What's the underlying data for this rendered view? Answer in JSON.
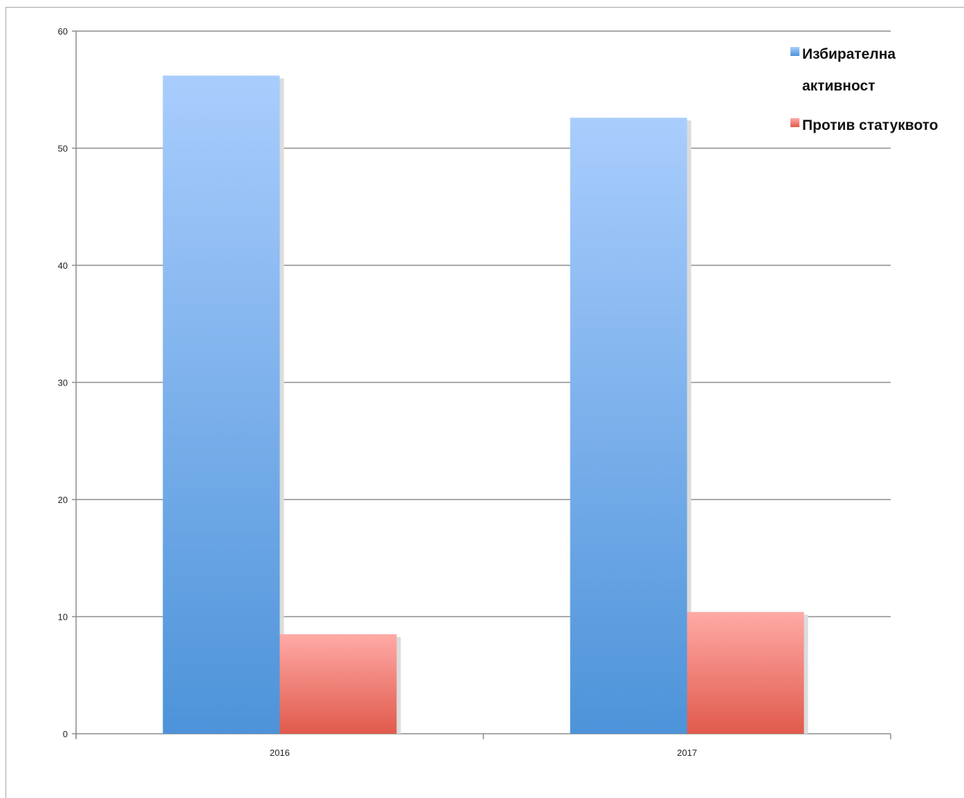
{
  "chart_data": {
    "type": "bar",
    "categories": [
      "2016",
      "2017"
    ],
    "series": [
      {
        "name": "Избирателна активност",
        "values": [
          56.2,
          52.6
        ],
        "color": "#6aa3e6"
      },
      {
        "name": "Против статуквото",
        "values": [
          8.5,
          10.4
        ],
        "color": "#ec7b72"
      }
    ],
    "ylim": [
      0,
      60
    ],
    "yticks": [
      0,
      10,
      20,
      30,
      40,
      50,
      60
    ],
    "grid": true,
    "legend_position": "top-right",
    "title": "",
    "xlabel": "",
    "ylabel": ""
  },
  "legend": {
    "line1": "Избирателна",
    "line2": "активност",
    "line3": "Против статуквото"
  }
}
